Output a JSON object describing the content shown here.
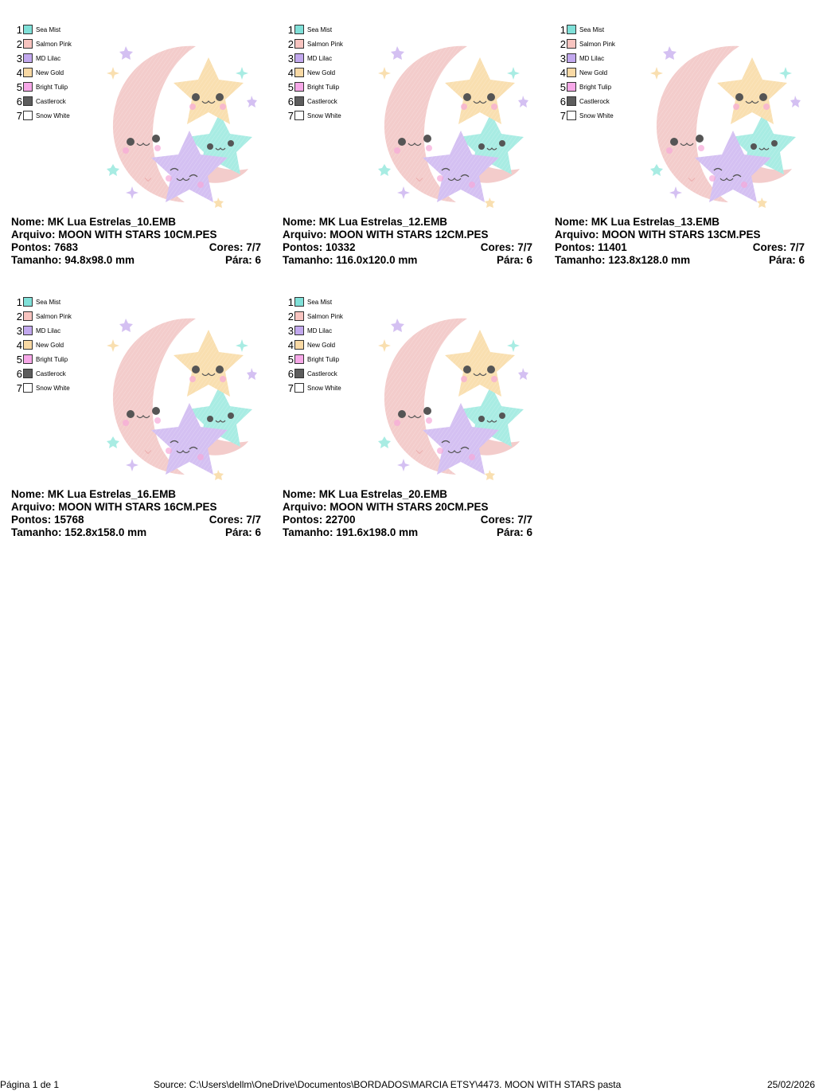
{
  "legend": [
    {
      "num": "1",
      "name": "Sea Mist",
      "color": "#7fe0d8"
    },
    {
      "num": "2",
      "name": "Salmon Pink",
      "color": "#f8c4c0"
    },
    {
      "num": "3",
      "name": "MD Lilac",
      "color": "#c2a8ee"
    },
    {
      "num": "4",
      "name": "New Gold",
      "color": "#f9d9a4"
    },
    {
      "num": "5",
      "name": "Bright Tulip",
      "color": "#f7a8e8"
    },
    {
      "num": "6",
      "name": "Castlerock",
      "color": "#5d5d5d"
    },
    {
      "num": "7",
      "name": "Snow White",
      "color": "#ffffff"
    }
  ],
  "designs": [
    {
      "nome": "Nome: MK Lua Estrelas_10.EMB",
      "arquivo": "Arquivo: MOON WITH STARS 10CM.PES",
      "pontos": "Pontos: 7683",
      "cores": "Cores: 7/7",
      "tamanho": "Tamanho: 94.8x98.0 mm",
      "para": "Pára: 6"
    },
    {
      "nome": "Nome: MK Lua Estrelas_12.EMB",
      "arquivo": "Arquivo: MOON WITH STARS 12CM.PES",
      "pontos": "Pontos: 10332",
      "cores": "Cores: 7/7",
      "tamanho": "Tamanho: 116.0x120.0 mm",
      "para": "Pára: 6"
    },
    {
      "nome": "Nome: MK Lua Estrelas_13.EMB",
      "arquivo": "Arquivo: MOON WITH STARS 13CM.PES",
      "pontos": "Pontos: 11401",
      "cores": "Cores: 7/7",
      "tamanho": "Tamanho: 123.8x128.0 mm",
      "para": "Pára: 6"
    },
    {
      "nome": "Nome: MK Lua Estrelas_16.EMB",
      "arquivo": "Arquivo: MOON WITH STARS 16CM.PES",
      "pontos": "Pontos: 15768",
      "cores": "Cores: 7/7",
      "tamanho": "Tamanho: 152.8x158.0 mm",
      "para": "Pára: 6"
    },
    {
      "nome": "Nome: MK Lua Estrelas_20.EMB",
      "arquivo": "Arquivo: MOON WITH STARS 20CM.PES",
      "pontos": "Pontos: 22700",
      "cores": "Cores: 7/7",
      "tamanho": "Tamanho: 191.6x198.0 mm",
      "para": "Pára: 6"
    }
  ],
  "footer": {
    "page": "Página 1 de 1",
    "source": "Source: C:\\Users\\dellm\\OneDrive\\Documentos\\BORDADOS\\MARCIA ETSY\\4473. MOON WITH STARS pasta",
    "date": "25/02/2026"
  },
  "art": {
    "moon_color": "#f3cccb",
    "gold_color": "#f9dfb0",
    "teal_color": "#a8ece3",
    "lilac_color": "#d4c0f2",
    "cheek_color": "#f7a8d8",
    "eye_color": "#555555"
  }
}
